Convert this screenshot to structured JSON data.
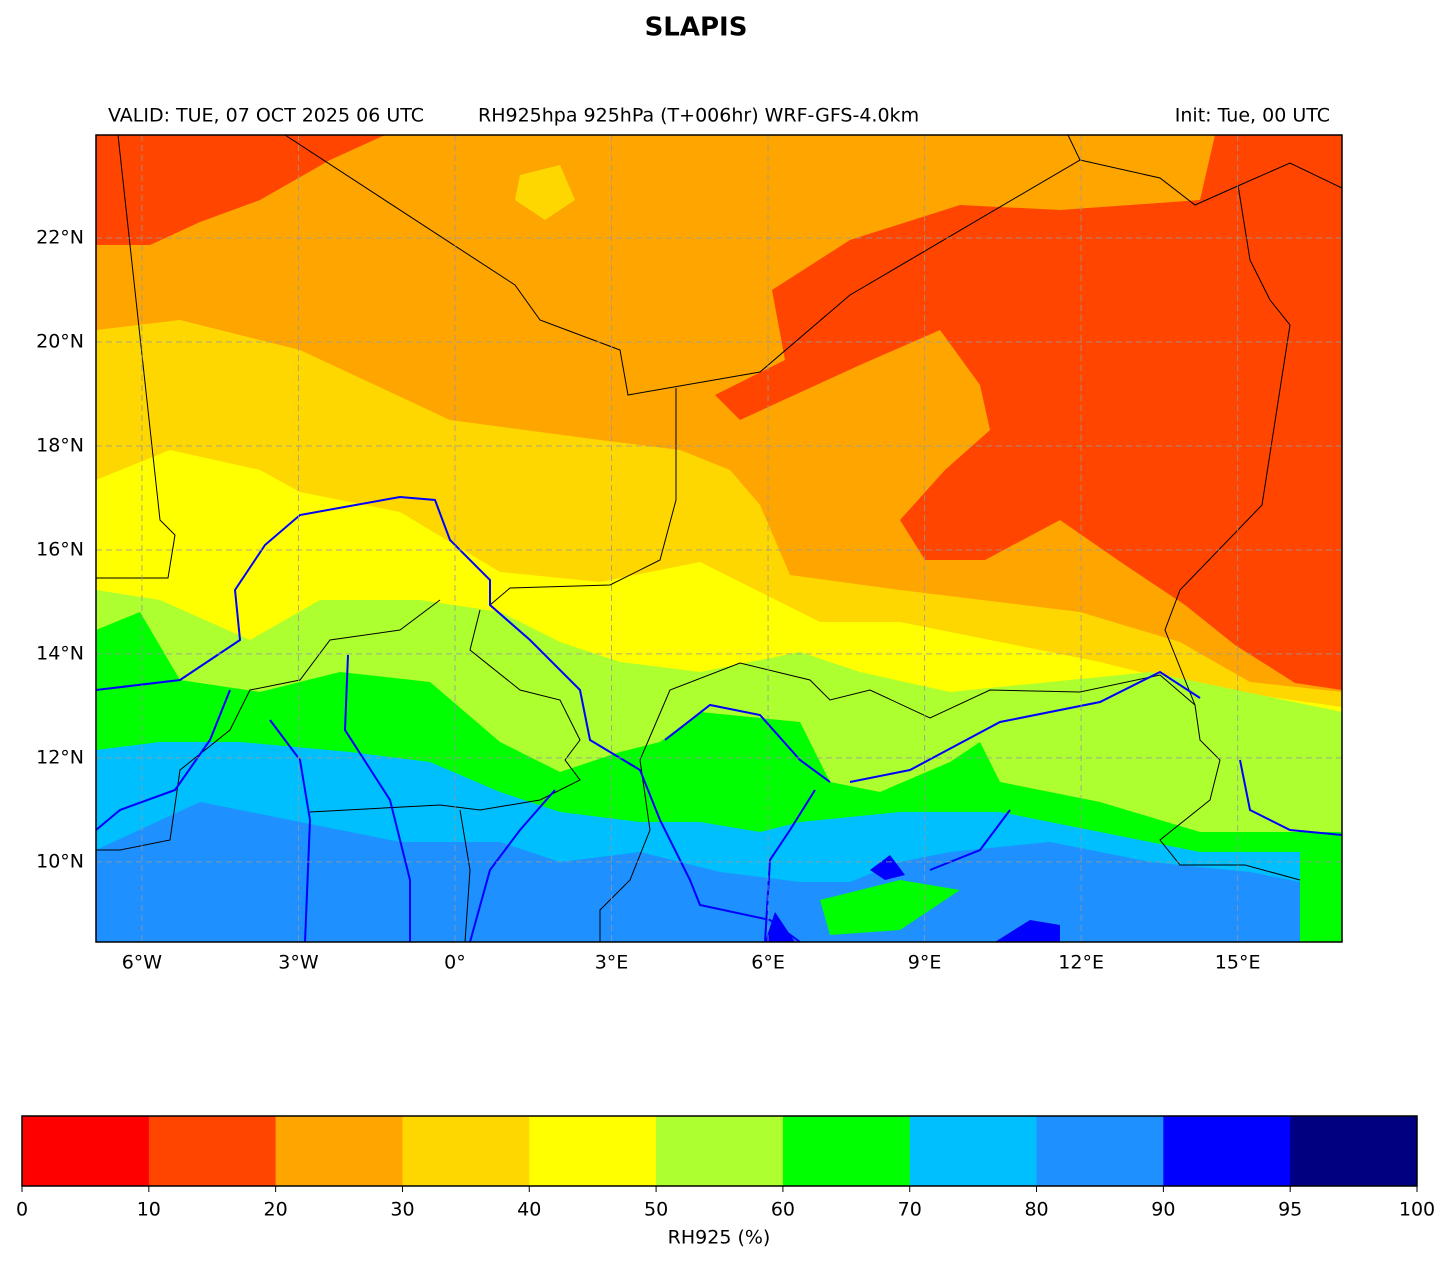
{
  "map": {
    "title": "SLAPIS",
    "subtitle_left": "VALID: TUE, 07 OCT 2025 06 UTC",
    "subtitle_center": "RH925hpa 925hPa (T+006hr) WRF-GFS-4.0km",
    "subtitle_right": "Init: Tue, 00 UTC",
    "xlim": [
      -6.88,
      17
    ],
    "ylim": [
      8.46,
      23.98
    ],
    "xticks": [
      {
        "value": -6,
        "label": "6°W"
      },
      {
        "value": -3,
        "label": "3°W"
      },
      {
        "value": 0,
        "label": "0°"
      },
      {
        "value": 3,
        "label": "3°E"
      },
      {
        "value": 6,
        "label": "6°E"
      },
      {
        "value": 9,
        "label": "9°E"
      },
      {
        "value": 12,
        "label": "12°E"
      },
      {
        "value": 15,
        "label": "15°E"
      }
    ],
    "yticks": [
      {
        "value": 10,
        "label": "10°N"
      },
      {
        "value": 12,
        "label": "12°N"
      },
      {
        "value": 14,
        "label": "14°N"
      },
      {
        "value": 16,
        "label": "16°N"
      },
      {
        "value": 18,
        "label": "18°N"
      },
      {
        "value": 20,
        "label": "20°N"
      },
      {
        "value": 22,
        "label": "22°N"
      }
    ],
    "grid": true,
    "colorbar": {
      "label": "RH925 (%)",
      "bounds": [
        0,
        10,
        20,
        30,
        40,
        50,
        60,
        70,
        80,
        90,
        95,
        100
      ],
      "colors": [
        "#ff0000",
        "#ff4500",
        "#ffa500",
        "#ffd700",
        "#ffff00",
        "#adff2f",
        "#00ff00",
        "#00bfff",
        "#1e90ff",
        "#0000ff",
        "#000080"
      ]
    }
  }
}
